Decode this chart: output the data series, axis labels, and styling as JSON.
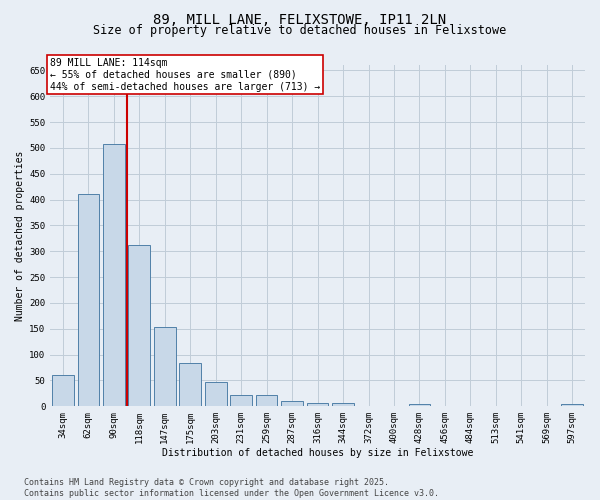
{
  "title": "89, MILL LANE, FELIXSTOWE, IP11 2LN",
  "subtitle": "Size of property relative to detached houses in Felixstowe",
  "xlabel": "Distribution of detached houses by size in Felixstowe",
  "ylabel": "Number of detached properties",
  "categories": [
    "34sqm",
    "62sqm",
    "90sqm",
    "118sqm",
    "147sqm",
    "175sqm",
    "203sqm",
    "231sqm",
    "259sqm",
    "287sqm",
    "316sqm",
    "344sqm",
    "372sqm",
    "400sqm",
    "428sqm",
    "456sqm",
    "484sqm",
    "513sqm",
    "541sqm",
    "569sqm",
    "597sqm"
  ],
  "values": [
    60,
    410,
    507,
    312,
    153,
    83,
    46,
    22,
    22,
    10,
    7,
    7,
    0,
    0,
    5,
    0,
    0,
    0,
    0,
    0,
    5
  ],
  "bar_color": "#c8d8e8",
  "bar_edge_color": "#5080a8",
  "property_line_color": "#cc0000",
  "annotation_text": "89 MILL LANE: 114sqm\n← 55% of detached houses are smaller (890)\n44% of semi-detached houses are larger (713) →",
  "annotation_box_facecolor": "#ffffff",
  "annotation_box_edgecolor": "#cc0000",
  "ylim": [
    0,
    660
  ],
  "yticks": [
    0,
    50,
    100,
    150,
    200,
    250,
    300,
    350,
    400,
    450,
    500,
    550,
    600,
    650
  ],
  "grid_color": "#c0ccd8",
  "background_color": "#e8eef5",
  "footer_text": "Contains HM Land Registry data © Crown copyright and database right 2025.\nContains public sector information licensed under the Open Government Licence v3.0.",
  "title_fontsize": 10,
  "subtitle_fontsize": 8.5,
  "axis_fontsize": 7,
  "tick_fontsize": 6.5,
  "annotation_fontsize": 7,
  "footer_fontsize": 6
}
